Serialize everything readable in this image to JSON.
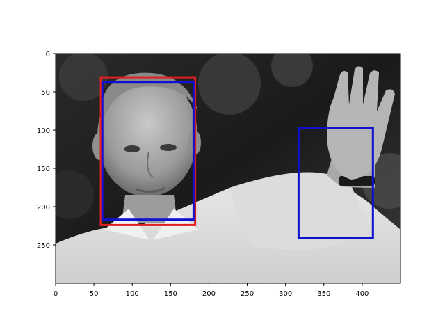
{
  "image": {
    "description_kind": "grayscale photo",
    "width_units": 450,
    "height_units": 300
  },
  "axes": {
    "x_ticks": [
      0,
      50,
      100,
      150,
      200,
      250,
      300,
      350,
      400
    ],
    "y_ticks": [
      0,
      50,
      100,
      150,
      200,
      250
    ],
    "xlim": [
      0,
      450
    ],
    "ylim": [
      300,
      0
    ]
  },
  "boxes": [
    {
      "id": "face-box-red",
      "color": "#e02020",
      "x0": 59,
      "y0": 31,
      "x1": 182,
      "y1": 224
    },
    {
      "id": "face-box-blue",
      "color": "#1010d0",
      "x0": 61,
      "y0": 37,
      "x1": 180,
      "y1": 217
    },
    {
      "id": "hand-box-blue",
      "color": "#1010d0",
      "x0": 317,
      "y0": 97,
      "x1": 414,
      "y1": 241
    }
  ]
}
